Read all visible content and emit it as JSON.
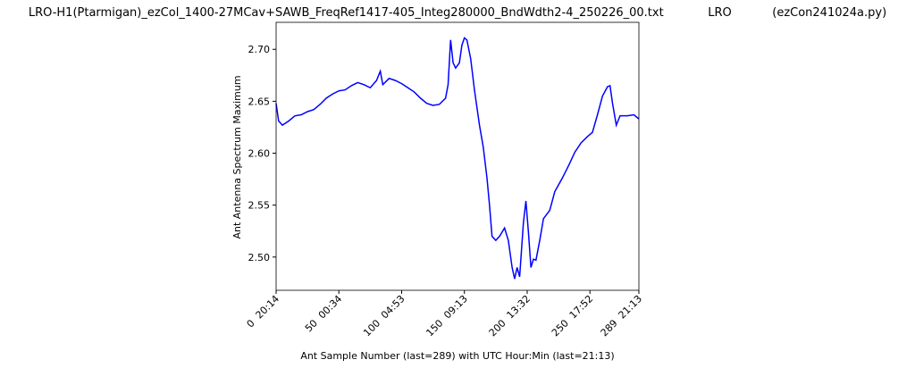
{
  "chart_data": {
    "type": "line",
    "title": "LRO-H1(Ptarmigan)_ezCol_1400-27MCav+SAWB_FreqRef1417-405_Integ280000_BndWdth2-4_250226_00.txt            LRO           (ezCon241024a.py)",
    "xlabel": "Ant Sample Number (last=289) with UTC Hour:Min (last=21:13)",
    "ylabel": "Ant Antenna Spectrum Maximum",
    "x": [
      0,
      2,
      5,
      10,
      15,
      20,
      25,
      30,
      35,
      40,
      45,
      50,
      55,
      60,
      65,
      70,
      75,
      80,
      83,
      85,
      90,
      95,
      100,
      105,
      110,
      115,
      120,
      125,
      130,
      135,
      137,
      139,
      141,
      143,
      146,
      148,
      150,
      152,
      155,
      158,
      162,
      165,
      168,
      170,
      172,
      175,
      178,
      182,
      185,
      188,
      190,
      192,
      194,
      197,
      199,
      201,
      203,
      205,
      207,
      210,
      213,
      218,
      222,
      228,
      233,
      238,
      243,
      248,
      252,
      256,
      260,
      264,
      266,
      268,
      271,
      274,
      280,
      285,
      289
    ],
    "series": [
      {
        "name": "Ant",
        "color": "#0000ff",
        "values": [
          2.648,
          2.631,
          2.627,
          2.631,
          2.636,
          2.637,
          2.64,
          2.642,
          2.647,
          2.653,
          2.657,
          2.66,
          2.661,
          2.665,
          2.668,
          2.666,
          2.663,
          2.67,
          2.679,
          2.666,
          2.672,
          2.67,
          2.667,
          2.663,
          2.659,
          2.653,
          2.648,
          2.646,
          2.647,
          2.653,
          2.666,
          2.709,
          2.687,
          2.682,
          2.687,
          2.704,
          2.711,
          2.709,
          2.691,
          2.661,
          2.627,
          2.606,
          2.576,
          2.55,
          2.52,
          2.516,
          2.52,
          2.528,
          2.516,
          2.49,
          2.479,
          2.49,
          2.481,
          2.533,
          2.554,
          2.524,
          2.49,
          2.498,
          2.497,
          2.516,
          2.537,
          2.545,
          2.563,
          2.576,
          2.588,
          2.601,
          2.61,
          2.616,
          2.62,
          2.637,
          2.655,
          2.664,
          2.665,
          2.648,
          2.627,
          2.636,
          2.636,
          2.637,
          2.633
        ]
      }
    ],
    "xlim": [
      0,
      289
    ],
    "ylim": [
      2.468,
      2.726
    ],
    "xticks": [
      {
        "value": 0,
        "label": "0  20:14"
      },
      {
        "value": 50,
        "label": "50  00:34"
      },
      {
        "value": 100,
        "label": "100  04:53"
      },
      {
        "value": 150,
        "label": "150  09:13"
      },
      {
        "value": 200,
        "label": "200  13:32"
      },
      {
        "value": 250,
        "label": "250  17:52"
      },
      {
        "value": 289,
        "label": "289  21:13"
      }
    ],
    "yticks": [
      {
        "value": 2.5,
        "label": "2.50"
      },
      {
        "value": 2.55,
        "label": "2.55"
      },
      {
        "value": 2.6,
        "label": "2.60"
      },
      {
        "value": 2.65,
        "label": "2.65"
      },
      {
        "value": 2.7,
        "label": "2.70"
      }
    ]
  }
}
